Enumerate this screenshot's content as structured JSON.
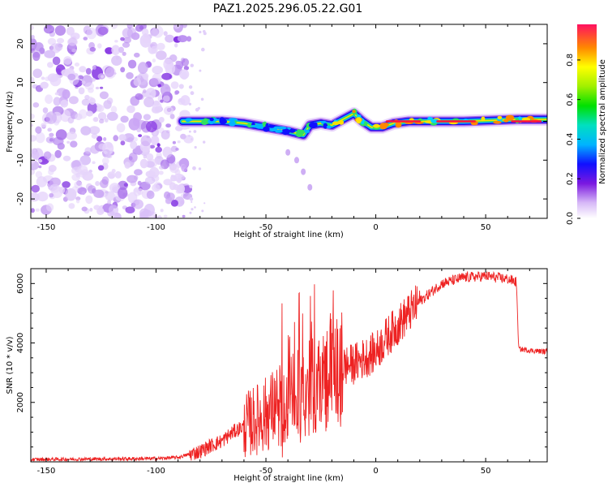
{
  "chart_data": [
    {
      "type": "heatmap",
      "title": "PAZ1.2025.296.05.22.G01",
      "xlabel": "Height of straight line (km)",
      "ylabel": "Frequency (Hz)",
      "xlim": [
        -157,
        78
      ],
      "ylim": [
        -25,
        25
      ],
      "xticks": [
        -150,
        -100,
        -50,
        0,
        50
      ],
      "yticks": [
        -20,
        -10,
        0,
        10,
        20
      ],
      "colorbar": {
        "label": "Normalized spectral amplitude",
        "range": [
          0,
          0.98
        ],
        "ticks": [
          0.0,
          0.2,
          0.4,
          0.6,
          0.8
        ]
      },
      "noise_region": {
        "x_range": [
          -157,
          -85
        ],
        "y_range": [
          -25,
          25
        ],
        "amplitude": 0.15
      },
      "signal_track": [
        [
          -88,
          0.0
        ],
        [
          -80,
          0.0
        ],
        [
          -70,
          0.0
        ],
        [
          -60,
          -0.5
        ],
        [
          -50,
          -1.5
        ],
        [
          -40,
          -2.5
        ],
        [
          -33,
          -3.5
        ],
        [
          -30,
          -1.0
        ],
        [
          -25,
          -0.5
        ],
        [
          -20,
          -1.0
        ],
        [
          -15,
          0.5
        ],
        [
          -10,
          2.0
        ],
        [
          -6,
          0.0
        ],
        [
          -2,
          -1.5
        ],
        [
          3,
          -1.5
        ],
        [
          8,
          -0.5
        ],
        [
          15,
          0.0
        ],
        [
          25,
          0.0
        ],
        [
          40,
          0.0
        ],
        [
          55,
          0.3
        ],
        [
          65,
          0.5
        ],
        [
          78,
          0.5
        ]
      ]
    },
    {
      "type": "line",
      "xlabel": "Height of straight line (km)",
      "ylabel": "SNR (10 * v/v)",
      "xlim": [
        -157,
        78
      ],
      "ylim": [
        0,
        6500
      ],
      "xticks": [
        -150,
        -100,
        -50,
        0,
        50
      ],
      "yticks": [
        2000,
        4000,
        6000
      ],
      "color": "#ee2222",
      "series": [
        {
          "name": "SNR",
          "x": [
            -157,
            -140,
            -120,
            -100,
            -90,
            -85,
            -80,
            -75,
            -70,
            -65,
            -60,
            -55,
            -50,
            -45,
            -40,
            -35,
            -30,
            -25,
            -20,
            -15,
            -10,
            -5,
            0,
            5,
            10,
            15,
            20,
            25,
            30,
            40,
            50,
            60,
            64,
            65,
            70,
            78
          ],
          "y": [
            80,
            90,
            100,
            110,
            150,
            250,
            350,
            550,
            700,
            1000,
            1200,
            1400,
            1600,
            1900,
            2000,
            2200,
            2500,
            2700,
            3000,
            3200,
            3300,
            3500,
            3700,
            4200,
            4600,
            5000,
            5400,
            5700,
            6000,
            6200,
            6250,
            6150,
            6050,
            3800,
            3750,
            3700
          ]
        }
      ]
    }
  ]
}
